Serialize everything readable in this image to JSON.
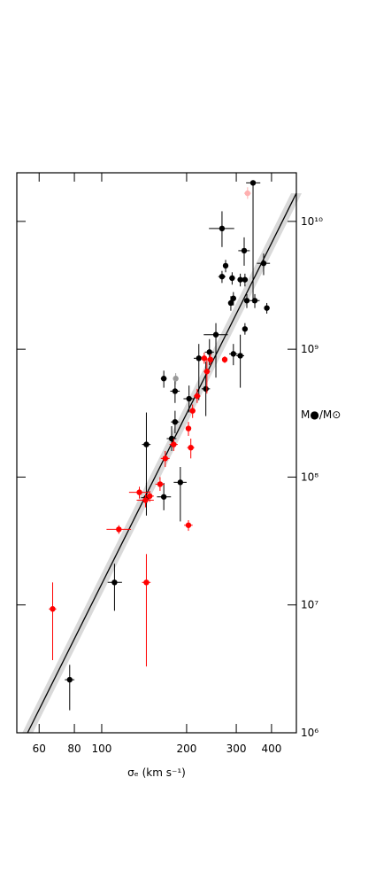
{
  "chart_data": {
    "type": "scatter",
    "x_label": "σₑ (km s⁻¹)",
    "y_label": "M●/M⊙",
    "log_x": true,
    "log_y": true,
    "xlim": [
      50,
      490
    ],
    "ylim": [
      1000000,
      24000000000
    ],
    "xticks": [
      60,
      80,
      100,
      200,
      300,
      400
    ],
    "yticks": [
      {
        "value": 1000000,
        "label": "10⁶"
      },
      {
        "value": 10000000,
        "label": "10⁷"
      },
      {
        "value": 100000000,
        "label": "10⁸"
      },
      {
        "value": 1000000000,
        "label": "10⁹"
      },
      {
        "value": 10000000000,
        "label": "10¹⁰"
      }
    ],
    "fit": {
      "color": "#000000",
      "band_color": "#d9d9d9",
      "x": [
        54.6,
        490
      ],
      "values": [
        1000000,
        16600000000
      ]
    },
    "series": [
      {
        "color": "#000000",
        "x": [
          77,
          111,
          144,
          166,
          190,
          144,
          177,
          182,
          166,
          182,
          204,
          221,
          234,
          241,
          254,
          293,
          310,
          322,
          287,
          293,
          267,
          290,
          310,
          322,
          327,
          349,
          385,
          275,
          320,
          375,
          267,
          344
        ],
        "values": [
          2600000,
          15000000,
          69000000,
          70000000,
          91000000,
          180000000,
          200000000,
          270000000,
          590000000,
          470000000,
          410000000,
          850000000,
          490000000,
          950000000,
          1300000000,
          920000000,
          890000000,
          1440000000,
          2300000000,
          2500000000,
          3700000000,
          3600000000,
          3500000000,
          3500000000,
          2400000000,
          2400000000,
          2100000000,
          4500000000,
          5900000000,
          4700000000,
          8800000000,
          20000000000
        ],
        "x_err": [
          [
            74,
            80
          ],
          [
            105,
            118
          ],
          [
            138,
            150
          ],
          [
            157,
            176
          ],
          [
            180,
            200
          ],
          [
            139,
            149
          ],
          [
            170,
            184
          ],
          [
            176,
            188
          ],
          [
            162,
            170
          ],
          [
            175,
            189
          ],
          [
            195,
            213
          ],
          [
            212,
            230
          ],
          [
            226,
            242
          ],
          [
            232,
            250
          ],
          [
            230,
            280
          ],
          [
            283,
            303
          ],
          [
            300,
            320
          ],
          [
            318,
            326
          ],
          [
            281,
            293
          ],
          [
            287,
            299
          ],
          [
            259,
            275
          ],
          [
            283,
            297
          ],
          [
            303,
            317
          ],
          [
            316,
            328
          ],
          [
            321,
            333
          ],
          [
            335,
            363
          ],
          [
            380,
            390
          ],
          [
            270,
            280
          ],
          [
            305,
            335
          ],
          [
            355,
            395
          ],
          [
            240,
            295
          ],
          [
            325,
            365
          ]
        ],
        "y_err": [
          [
            1500000,
            3400000
          ],
          [
            9000000,
            21000000
          ],
          [
            50000000,
            90000000
          ],
          [
            55000000,
            90000000
          ],
          [
            45000000,
            120000000
          ],
          [
            80000000,
            320000000
          ],
          [
            160000000,
            250000000
          ],
          [
            220000000,
            330000000
          ],
          [
            500000000,
            680000000
          ],
          [
            380000000,
            580000000
          ],
          [
            320000000,
            520000000
          ],
          [
            400000000,
            1100000000
          ],
          [
            300000000,
            800000000
          ],
          [
            750000000,
            1200000000
          ],
          [
            600000000,
            1600000000
          ],
          [
            750000000,
            1100000000
          ],
          [
            500000000,
            1300000000
          ],
          [
            1300000000,
            1600000000
          ],
          [
            2000000000,
            2600000000
          ],
          [
            2200000000,
            2800000000
          ],
          [
            3300000000,
            4100000000
          ],
          [
            3200000000,
            4000000000
          ],
          [
            3100000000,
            3900000000
          ],
          [
            3100000000,
            3900000000
          ],
          [
            2100000000,
            2700000000
          ],
          [
            2100000000,
            2700000000
          ],
          [
            1900000000,
            2300000000
          ],
          [
            4000000000,
            5000000000
          ],
          [
            4500000000,
            7500000000
          ],
          [
            3800000000,
            5600000000
          ],
          [
            6300000000,
            12000000000
          ],
          [
            2300000000,
            21000000000
          ]
        ]
      },
      {
        "color": "#ff0000",
        "x": [
          67,
          144,
          115,
          136,
          143,
          148,
          161,
          203,
          168,
          180,
          207,
          203,
          210,
          218,
          236,
          243,
          231,
          273
        ],
        "values": [
          9300000,
          15000000,
          39000000,
          76000000,
          66000000,
          71000000,
          88000000,
          42000000,
          140000000,
          180000000,
          170000000,
          240000000,
          330000000,
          430000000,
          670000000,
          830000000,
          850000000,
          830000000
        ],
        "x_err": [
          [
            65,
            69
          ],
          [
            139,
            149
          ],
          [
            104,
            127
          ],
          [
            125,
            148
          ],
          [
            133,
            153
          ],
          [
            143,
            153
          ],
          [
            155,
            167
          ],
          [
            196,
            210
          ],
          [
            162,
            174
          ],
          [
            174,
            186
          ],
          [
            201,
            213
          ],
          [
            199,
            207
          ],
          [
            205,
            215
          ],
          [
            212,
            224
          ],
          [
            230,
            242
          ],
          [
            237,
            249
          ],
          [
            225,
            237
          ],
          [
            269,
            277
          ]
        ],
        "y_err": [
          [
            3700000,
            15000000
          ],
          [
            3300000,
            25000000
          ],
          [
            36000000,
            42000000
          ],
          [
            68000000,
            84000000
          ],
          [
            58000000,
            74000000
          ],
          [
            64000000,
            78000000
          ],
          [
            78000000,
            100000000
          ],
          [
            38000000,
            46000000
          ],
          [
            120000000,
            160000000
          ],
          [
            160000000,
            200000000
          ],
          [
            140000000,
            200000000
          ],
          [
            210000000,
            270000000
          ],
          [
            290000000,
            370000000
          ],
          [
            380000000,
            490000000
          ],
          [
            450000000,
            850000000
          ],
          [
            750000000,
            920000000
          ],
          [
            770000000,
            940000000
          ],
          [
            780000000,
            880000000
          ]
        ]
      },
      {
        "color": "#999999",
        "x": [
          183
        ],
        "values": [
          590000000
        ],
        "x_err": [
          [
            180,
            186
          ]
        ],
        "y_err": [
          [
            530000000,
            650000000
          ]
        ]
      },
      {
        "color": "#ffb0b0",
        "x": [
          329
        ],
        "values": [
          16600000000
        ],
        "x_err": [
          [
            320,
            338
          ]
        ],
        "y_err": [
          [
            15000000000,
            18500000000
          ]
        ]
      }
    ]
  }
}
